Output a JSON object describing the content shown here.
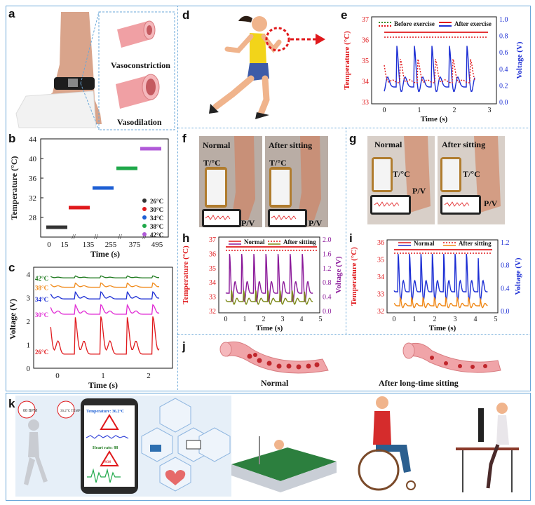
{
  "labels": {
    "a": "a",
    "b": "b",
    "c": "c",
    "d": "d",
    "e": "e",
    "f": "f",
    "g": "g",
    "h": "h",
    "i": "i",
    "j": "j",
    "k": "k"
  },
  "panel_a": {
    "vasoconstriction": "Vasoconstriction",
    "vasodilation": "Vasodilation"
  },
  "panel_f": {
    "normal": "Normal",
    "after": "After sitting",
    "t": "T/°C",
    "p": "P/V"
  },
  "panel_g": {
    "normal": "Normal",
    "after": "After sitting",
    "t": "T/°C",
    "p": "P/V"
  },
  "panel_j": {
    "normal": "Normal",
    "after": "After long-time sitting"
  },
  "panel_k": {
    "bpm": "88 BPM",
    "temp": "36.2°C TEMP",
    "temperature": "Temperature: 36.2°C",
    "heart": "Heart rate: 88",
    "sos": "SOS"
  },
  "colors": {
    "red": "#e0191c",
    "blue": "#1d2fd4",
    "purple": "#8b1a9a",
    "green": "#1f7a1f",
    "orange": "#f08a1a",
    "magenta": "#e02ad4",
    "border": "#6aa7d8"
  },
  "chart_data": [
    {
      "id": "b",
      "type": "scatter",
      "xlabel": "Time (s)",
      "ylabel": "Temperature (°C)",
      "yticks": [
        28,
        32,
        36,
        40,
        44
      ],
      "ylim": [
        24,
        44
      ],
      "xticks": [
        "0",
        "15",
        "135",
        "255",
        "375",
        "495"
      ],
      "series": [
        {
          "name": "26°C",
          "color": "#333333",
          "x": [
            0,
            15
          ],
          "y": [
            26,
            26
          ]
        },
        {
          "name": "30°C",
          "color": "#e0191c",
          "x": [
            105,
            135
          ],
          "y": [
            30,
            30
          ]
        },
        {
          "name": "34°C",
          "color": "#1d5fd4",
          "x": [
            225,
            255
          ],
          "y": [
            34,
            34
          ]
        },
        {
          "name": "38°C",
          "color": "#1fa84a",
          "x": [
            345,
            375
          ],
          "y": [
            38,
            38
          ]
        },
        {
          "name": "42°C",
          "color": "#b05ad8",
          "x": [
            465,
            495
          ],
          "y": [
            42,
            42
          ]
        }
      ]
    },
    {
      "id": "c",
      "type": "line",
      "xlabel": "Time (s)",
      "ylabel": "Voltage (V)",
      "xticks": [
        0,
        1,
        2
      ],
      "yticks": [
        0,
        1,
        2,
        3,
        4
      ],
      "ylim": [
        0,
        4.3
      ],
      "series": [
        {
          "name": "42°C",
          "color": "#1f7a1f",
          "baseline": 3.85,
          "amp": 0.08
        },
        {
          "name": "38°C",
          "color": "#f08a1a",
          "baseline": 3.45,
          "amp": 0.18
        },
        {
          "name": "34°C",
          "color": "#1d2fd4",
          "baseline": 2.95,
          "amp": 0.3
        },
        {
          "name": "30°C",
          "color": "#e02ad4",
          "baseline": 2.3,
          "amp": 0.4
        },
        {
          "name": "26°C",
          "color": "#e0191c",
          "baseline": 0.6,
          "amp": 1.6
        }
      ]
    },
    {
      "id": "e",
      "type": "line",
      "xlabel": "Time (s)",
      "ylabel": "Temperature (°C)",
      "y2label": "Voltage (V)",
      "xticks": [
        0,
        1,
        2,
        3
      ],
      "yticks": [
        33,
        34,
        35,
        36,
        37
      ],
      "y2ticks": [
        "0.0",
        "0.2",
        "0.4",
        "0.6",
        "0.8",
        "1.0"
      ],
      "ylim": [
        33,
        37
      ],
      "xlim": [
        -0.3,
        3
      ],
      "series": [
        {
          "name": "Before exercise",
          "color": "#e0191c",
          "style": "dotted"
        },
        {
          "name": "After exercise",
          "color": "#e0191c"
        },
        {
          "name": "Before exercise",
          "color": "#1d2fd4",
          "style": "dotted"
        },
        {
          "name": "After exercise",
          "color": "#1d2fd4"
        }
      ]
    },
    {
      "id": "h",
      "type": "line",
      "xlabel": "Time (s)",
      "ylabel": "Temperature (°C)",
      "y2label": "Voltage (V)",
      "xticks": [
        0,
        1,
        2,
        3,
        4,
        5
      ],
      "yticks": [
        32,
        33,
        34,
        35,
        36,
        37
      ],
      "y2ticks": [
        "0.0",
        "0.4",
        "0.8",
        "1.2",
        "1.6",
        "2.0"
      ],
      "series": [
        {
          "name": "Normal",
          "color": "#e0191c"
        },
        {
          "name": "After sitting",
          "color": "#e0191c",
          "style": "dotted"
        },
        {
          "name": "Normal",
          "color": "#8b1a9a"
        },
        {
          "name": "After sitting",
          "color": "#7d8a1a"
        }
      ]
    },
    {
      "id": "i",
      "type": "line",
      "xlabel": "Time (s)",
      "ylabel": "Temperature (°C)",
      "y2label": "Voltage (V)",
      "xticks": [
        0,
        1,
        2,
        3,
        4,
        5
      ],
      "yticks": [
        32,
        33,
        34,
        35,
        36
      ],
      "y2ticks": [
        "0.0",
        "0.4",
        "0.8",
        "1.2"
      ],
      "series": [
        {
          "name": "Normal",
          "color": "#e0191c"
        },
        {
          "name": "After sitting",
          "color": "#e0191c",
          "style": "dotted"
        },
        {
          "name": "Normal",
          "color": "#1d2fd4"
        },
        {
          "name": "After sitting",
          "color": "#f08a1a"
        }
      ]
    }
  ]
}
